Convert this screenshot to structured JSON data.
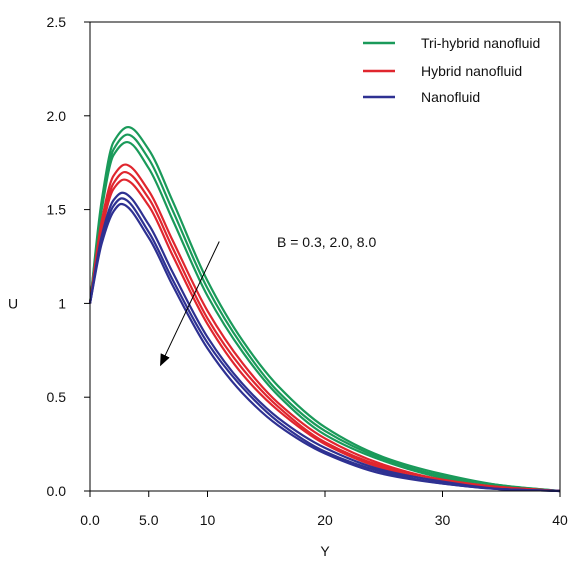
{
  "chart_data": {
    "type": "line",
    "xlabel": "Y",
    "ylabel": "U",
    "xlim": [
      0,
      40
    ],
    "ylim": [
      0,
      2.5
    ],
    "x_ticks": [
      {
        "value": 0,
        "label": "0.0"
      },
      {
        "value": 5,
        "label": "5.0"
      },
      {
        "value": 10,
        "label": "10"
      },
      {
        "value": 20,
        "label": "20"
      },
      {
        "value": 30,
        "label": "30"
      },
      {
        "value": 40,
        "label": "40"
      }
    ],
    "y_ticks": [
      {
        "value": 0,
        "label": "0.0"
      },
      {
        "value": 0.5,
        "label": "0.5"
      },
      {
        "value": 1,
        "label": "1"
      },
      {
        "value": 1.5,
        "label": "1.5"
      },
      {
        "value": 2,
        "label": "2.0"
      },
      {
        "value": 2.5,
        "label": "2.5"
      }
    ],
    "grid": false,
    "legend_position": "top-right",
    "legend": [
      {
        "label": "Tri-hybrid nanofluid",
        "color": "#1a9a5a"
      },
      {
        "label": "Hybrid nanofluid",
        "color": "#e0262e"
      },
      {
        "label": "Nanofluid",
        "color": "#2e3192"
      }
    ],
    "annotation": {
      "text": "B = 0.3, 2.0, 8.0",
      "from": [
        11,
        1.33
      ],
      "to": [
        6,
        0.67
      ]
    },
    "series": [
      {
        "group": "Tri-hybrid nanofluid",
        "color": "#1a9a5a",
        "peak_x": 3.25,
        "peak_y": 1.94,
        "x": [
          0,
          1,
          2,
          3.25,
          5,
          7,
          10,
          13,
          16,
          20,
          25,
          30,
          35,
          40
        ],
        "y": [
          1.0,
          1.55,
          1.86,
          1.94,
          1.82,
          1.55,
          1.12,
          0.8,
          0.56,
          0.34,
          0.18,
          0.09,
          0.03,
          0.0
        ]
      },
      {
        "group": "Tri-hybrid nanofluid",
        "color": "#1a9a5a",
        "peak_x": 3.2,
        "peak_y": 1.9,
        "x": [
          0,
          1,
          2,
          3.2,
          5,
          7,
          10,
          13,
          16,
          20,
          25,
          30,
          35,
          40
        ],
        "y": [
          1.0,
          1.52,
          1.82,
          1.9,
          1.77,
          1.5,
          1.08,
          0.77,
          0.53,
          0.32,
          0.17,
          0.08,
          0.03,
          0.0
        ]
      },
      {
        "group": "Tri-hybrid nanofluid",
        "color": "#1a9a5a",
        "peak_x": 3.15,
        "peak_y": 1.86,
        "x": [
          0,
          1,
          2,
          3.15,
          5,
          7,
          10,
          13,
          16,
          20,
          25,
          30,
          35,
          40
        ],
        "y": [
          1.0,
          1.5,
          1.79,
          1.86,
          1.72,
          1.45,
          1.04,
          0.74,
          0.51,
          0.3,
          0.16,
          0.07,
          0.02,
          0.0
        ]
      },
      {
        "group": "Hybrid nanofluid",
        "color": "#e0262e",
        "peak_x": 3.0,
        "peak_y": 1.74,
        "x": [
          0,
          1,
          2,
          3.0,
          5,
          7,
          10,
          13,
          16,
          20,
          25,
          30,
          35,
          40
        ],
        "y": [
          1.0,
          1.44,
          1.68,
          1.74,
          1.6,
          1.34,
          0.96,
          0.68,
          0.47,
          0.28,
          0.14,
          0.06,
          0.02,
          0.0
        ]
      },
      {
        "group": "Hybrid nanofluid",
        "color": "#e0262e",
        "peak_x": 2.95,
        "peak_y": 1.7,
        "x": [
          0,
          1,
          2,
          2.95,
          5,
          7,
          10,
          13,
          16,
          20,
          25,
          30,
          35,
          40
        ],
        "y": [
          1.0,
          1.42,
          1.64,
          1.7,
          1.56,
          1.3,
          0.92,
          0.65,
          0.45,
          0.26,
          0.13,
          0.06,
          0.02,
          0.0
        ]
      },
      {
        "group": "Hybrid nanofluid",
        "color": "#e0262e",
        "peak_x": 2.9,
        "peak_y": 1.66,
        "x": [
          0,
          1,
          2,
          2.9,
          5,
          7,
          10,
          13,
          16,
          20,
          25,
          30,
          35,
          40
        ],
        "y": [
          1.0,
          1.39,
          1.61,
          1.66,
          1.52,
          1.26,
          0.89,
          0.62,
          0.43,
          0.25,
          0.12,
          0.05,
          0.02,
          0.0
        ]
      },
      {
        "group": "Nanofluid",
        "color": "#2e3192",
        "peak_x": 2.75,
        "peak_y": 1.59,
        "x": [
          0,
          1,
          2,
          2.75,
          5,
          7,
          10,
          13,
          16,
          20,
          25,
          30,
          35,
          40
        ],
        "y": [
          1.0,
          1.36,
          1.55,
          1.59,
          1.42,
          1.17,
          0.82,
          0.57,
          0.39,
          0.23,
          0.11,
          0.05,
          0.01,
          0.0
        ]
      },
      {
        "group": "Nanofluid",
        "color": "#2e3192",
        "peak_x": 2.7,
        "peak_y": 1.56,
        "x": [
          0,
          1,
          2,
          2.7,
          5,
          7,
          10,
          13,
          16,
          20,
          25,
          30,
          35,
          40
        ],
        "y": [
          1.0,
          1.34,
          1.52,
          1.56,
          1.38,
          1.13,
          0.79,
          0.55,
          0.37,
          0.21,
          0.1,
          0.04,
          0.01,
          0.0
        ]
      },
      {
        "group": "Nanofluid",
        "color": "#2e3192",
        "peak_x": 2.65,
        "peak_y": 1.53,
        "x": [
          0,
          1,
          2,
          2.65,
          5,
          7,
          10,
          13,
          16,
          20,
          25,
          30,
          35,
          40
        ],
        "y": [
          1.0,
          1.32,
          1.49,
          1.53,
          1.35,
          1.1,
          0.76,
          0.52,
          0.35,
          0.2,
          0.09,
          0.04,
          0.01,
          0.0
        ]
      }
    ]
  }
}
